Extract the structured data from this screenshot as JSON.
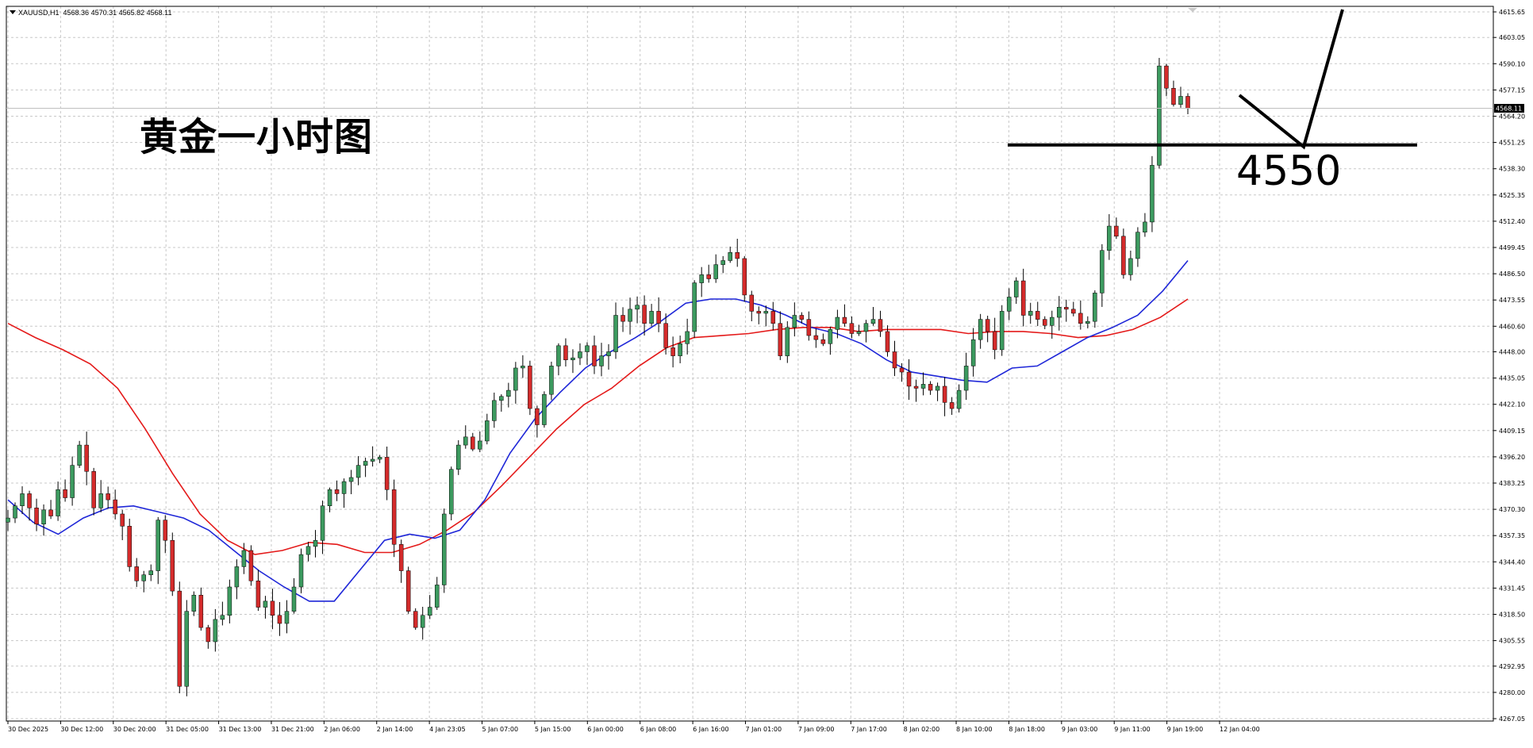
{
  "header": {
    "symbol": "XAUUSD,H1",
    "ohlc": "4568.36 4570.31 4565.82 4568.11"
  },
  "annotation": {
    "title": "黄金一小时图",
    "level_label": "4550",
    "level_value": 4550
  },
  "colors": {
    "bull_candle": "#3c9a5f",
    "bear_candle": "#d42b2b",
    "ma_fast": "#1f27d8",
    "ma_slow": "#e41a1a",
    "grid": "#c8c8c8",
    "annotation": "#000000"
  },
  "chart_data": {
    "type": "candlestick",
    "timeframe": "H1",
    "ylim": [
      4267.05,
      4615.65
    ],
    "y_ticks": [
      "4615.65",
      "4603.05",
      "4590.10",
      "4577.15",
      "4564.20",
      "4551.25",
      "4538.30",
      "4525.35",
      "4512.40",
      "4499.45",
      "4486.50",
      "4473.55",
      "4460.60",
      "4448.00",
      "4435.05",
      "4422.10",
      "4409.15",
      "4396.20",
      "4383.25",
      "4370.30",
      "4357.35",
      "4344.40",
      "4331.45",
      "4318.50",
      "4305.55",
      "4292.95",
      "4280.00",
      "4267.05"
    ],
    "x_ticks": [
      "30 Dec 2025",
      "30 Dec 12:00",
      "30 Dec 20:00",
      "31 Dec 05:00",
      "31 Dec 13:00",
      "31 Dec 21:00",
      "2 Jan 06:00",
      "2 Jan 14:00",
      "4 Jan 23:05",
      "5 Jan 07:00",
      "5 Jan 15:00",
      "6 Jan 00:00",
      "6 Jan 08:00",
      "6 Jan 16:00",
      "7 Jan 01:00",
      "7 Jan 09:00",
      "7 Jan 17:00",
      "8 Jan 02:00",
      "8 Jan 10:00",
      "8 Jan 18:00",
      "9 Jan 03:00",
      "9 Jan 11:00",
      "9 Jan 19:00",
      "12 Jan 04:00"
    ],
    "current_price_label": "4568.11",
    "current_price": 4568.11,
    "closes": [
      4366,
      4372,
      4378,
      4371,
      4363,
      4370,
      4367,
      4380,
      4376,
      4392,
      4402,
      4389,
      4371,
      4378,
      4375,
      4368,
      4362,
      4342,
      4335,
      4338,
      4340,
      4365,
      4355,
      4330,
      4283,
      4320,
      4328,
      4312,
      4305,
      4316,
      4318,
      4332,
      4342,
      4350,
      4335,
      4322,
      4325,
      4318,
      4314,
      4320,
      4332,
      4348,
      4352,
      4355,
      4372,
      4380,
      4378,
      4384,
      4386,
      4392,
      4394,
      4395,
      4396,
      4380,
      4353,
      4340,
      4320,
      4312,
      4318,
      4322,
      4333,
      4368,
      4390,
      4402,
      4406,
      4400,
      4404,
      4414,
      4424,
      4426,
      4429,
      4440,
      4441,
      4420,
      4412,
      4427,
      4441,
      4451,
      4444,
      4445,
      4448,
      4451,
      4441,
      4446,
      4448,
      4466,
      4463,
      4469,
      4471,
      4462,
      4468,
      4462,
      4450,
      4446,
      4452,
      4458,
      4482,
      4486,
      4484,
      4491,
      4493,
      4497,
      4494,
      4476,
      4468,
      4467,
      4468,
      4462,
      4446,
      4460,
      4466,
      4464,
      4456,
      4454,
      4452,
      4459,
      4465,
      4462,
      4457,
      4458,
      4462,
      4464,
      4458,
      4448,
      4440,
      4438,
      4431,
      4430,
      4432,
      4429,
      4431,
      4423,
      4420,
      4429,
      4441,
      4454,
      4464,
      4458,
      4449,
      4468,
      4475,
      4483,
      4466,
      4468,
      4464,
      4461,
      4465,
      4470,
      4469,
      4467,
      4462,
      4463,
      4477,
      4498,
      4510,
      4505,
      4486,
      4494,
      4507,
      4512,
      4540,
      4589,
      4578,
      4570,
      4574,
      4568
    ],
    "ma_fast": [
      4375,
      4364,
      4358,
      4366,
      4371,
      4372,
      4369,
      4366,
      4360,
      4350,
      4340,
      4332,
      4325,
      4325,
      4340,
      4355,
      4358,
      4356,
      4360,
      4375,
      4398,
      4415,
      4428,
      4440,
      4448,
      4455,
      4463,
      4472,
      4474,
      4474,
      4471,
      4466,
      4460,
      4457,
      4452,
      4444,
      4438,
      4436,
      4434,
      4433,
      4440,
      4441,
      4448,
      4455,
      4460,
      4466,
      4478,
      4493
    ],
    "ma_slow": [
      4462,
      4455,
      4449,
      4442,
      4430,
      4410,
      4388,
      4368,
      4355,
      4348,
      4350,
      4354,
      4353,
      4349,
      4349,
      4353,
      4360,
      4369,
      4382,
      4396,
      4410,
      4422,
      4430,
      4441,
      4450,
      4455,
      4456,
      4457,
      4459,
      4460,
      4460,
      4458,
      4459,
      4459,
      4459,
      4457,
      4458,
      4458,
      4457,
      4455,
      4456,
      4459,
      4465,
      4474
    ]
  }
}
